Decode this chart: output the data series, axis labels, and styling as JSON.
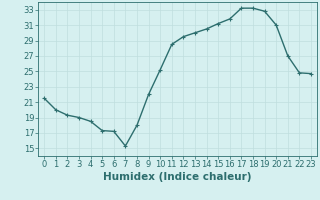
{
  "x": [
    0,
    1,
    2,
    3,
    4,
    5,
    6,
    7,
    8,
    9,
    10,
    11,
    12,
    13,
    14,
    15,
    16,
    17,
    18,
    19,
    20,
    21,
    22,
    23
  ],
  "y": [
    21.5,
    20.0,
    19.3,
    19.0,
    18.5,
    17.3,
    17.2,
    15.3,
    18.0,
    22.0,
    25.2,
    28.5,
    29.5,
    30.0,
    30.5,
    31.2,
    31.8,
    33.2,
    33.2,
    32.8,
    31.0,
    27.0,
    24.8,
    24.7
  ],
  "line_color": "#2d6e6e",
  "bg_color": "#d6f0f0",
  "grid_color": "#c0dede",
  "xlabel": "Humidex (Indice chaleur)",
  "ylim": [
    14,
    34
  ],
  "xlim": [
    -0.5,
    23.5
  ],
  "yticks": [
    15,
    17,
    19,
    21,
    23,
    25,
    27,
    29,
    31,
    33
  ],
  "xticks": [
    0,
    1,
    2,
    3,
    4,
    5,
    6,
    7,
    8,
    9,
    10,
    11,
    12,
    13,
    14,
    15,
    16,
    17,
    18,
    19,
    20,
    21,
    22,
    23
  ],
  "marker": "+",
  "marker_size": 3.5,
  "line_width": 1.0,
  "xlabel_fontsize": 7.5,
  "tick_fontsize": 6.0
}
